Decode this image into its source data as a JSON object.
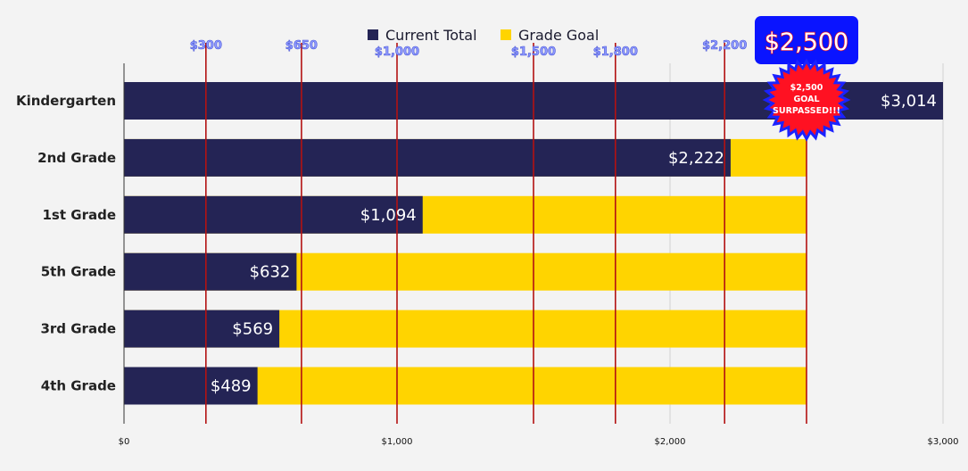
{
  "chart_data": {
    "type": "bar",
    "orientation": "horizontal",
    "stacked": "overlay",
    "categories": [
      "Kindergarten",
      "2nd Grade",
      "1st Grade",
      "5th Grade",
      "3rd Grade",
      "4th Grade"
    ],
    "series": [
      {
        "name": "Current Total",
        "color": "#242455",
        "values": [
          3014,
          2222,
          1094,
          632,
          569,
          489
        ],
        "labels": [
          "$3,014",
          "$2,222",
          "$1,094",
          "$632",
          "$569",
          "$489"
        ]
      },
      {
        "name": "Grade Goal",
        "color": "#ffd400",
        "values": [
          2500,
          2500,
          2500,
          2500,
          2500,
          2500
        ]
      }
    ],
    "xlim": [
      0,
      3000
    ],
    "x_ticks": [
      {
        "value": 0,
        "label": "$0"
      },
      {
        "value": 1000,
        "label": "$1,000"
      },
      {
        "value": 2000,
        "label": "$2,000"
      },
      {
        "value": 3000,
        "label": "$3,000"
      }
    ],
    "grid": true,
    "legend_position": "top",
    "reference_lines": [
      {
        "value": 300,
        "label": "$300"
      },
      {
        "value": 650,
        "label": "$650"
      },
      {
        "value": 1000,
        "label": "$1,000"
      },
      {
        "value": 1500,
        "label": "$1,500"
      },
      {
        "value": 1800,
        "label": "$1,800"
      },
      {
        "value": 2200,
        "label": "$2,200"
      },
      {
        "value": 2500,
        "label": ""
      }
    ],
    "reference_line_color": "#b31212",
    "badge": {
      "value": 2500,
      "label": "$2,500",
      "color": "#0a14ff"
    },
    "starburst": {
      "lines": [
        "$2,500",
        "GOAL",
        "SURPASSED!!!"
      ],
      "color": "#ff1122",
      "edge_color": "#1a22ff"
    }
  }
}
